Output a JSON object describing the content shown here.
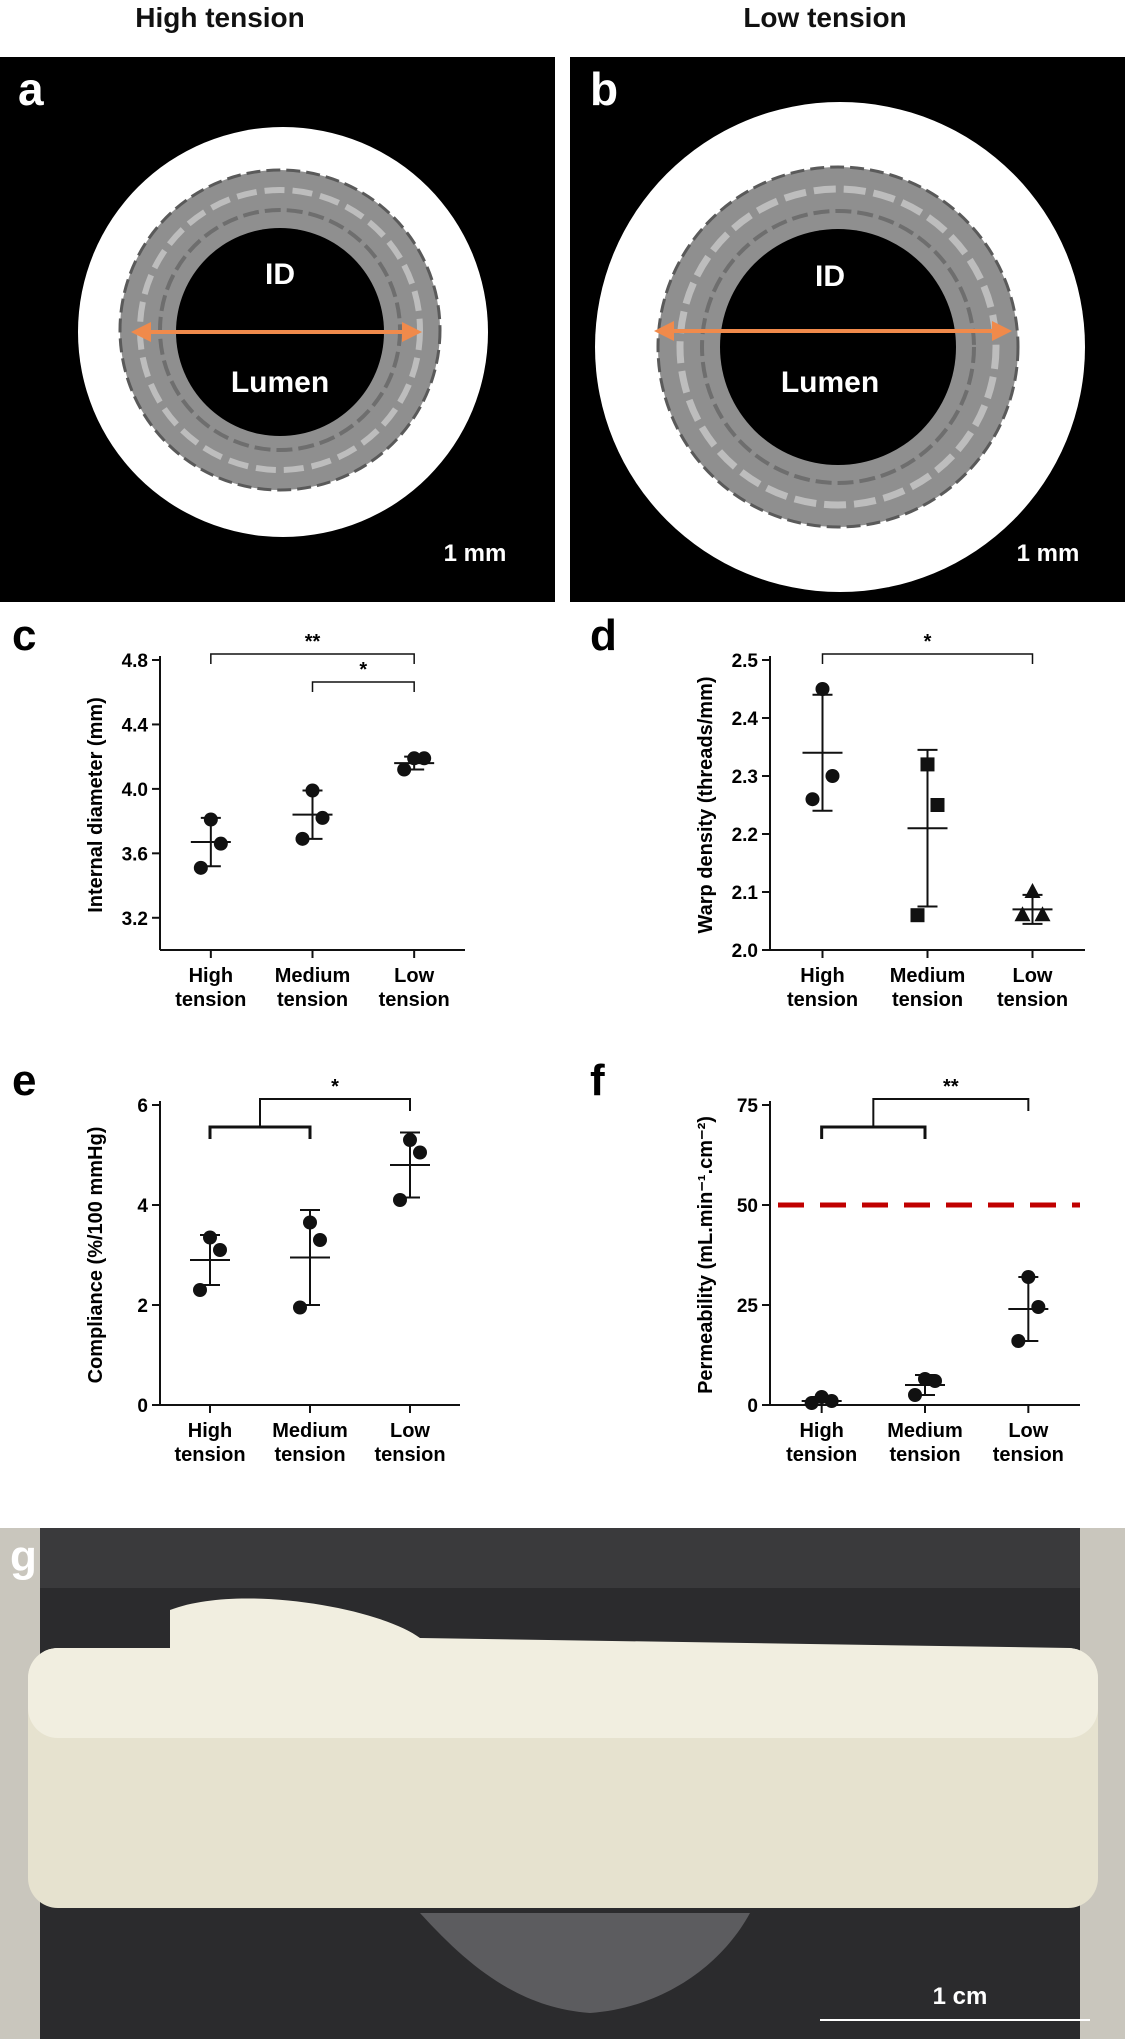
{
  "panel_a": {
    "letter": "a",
    "header": "High tension",
    "id_label": "ID",
    "lumen_label": "Lumen",
    "scalebar": "1 mm"
  },
  "panel_b": {
    "letter": "b",
    "header": "Low tension",
    "id_label": "ID",
    "lumen_label": "Lumen",
    "scalebar": "1 mm"
  },
  "panel_g": {
    "letter": "g",
    "scalebar": "1 cm"
  },
  "colors": {
    "arrow": "#f08a4b",
    "photo_bg": "#000000",
    "dashed_line": "#c00000"
  },
  "chart_data": [
    {
      "letter": "c",
      "type": "scatter",
      "ylabel": "Internal diameter (mm)",
      "ylim": [
        3.0,
        4.8
      ],
      "yticks": [
        "3.2",
        "3.6",
        "4.0",
        "4.4",
        "4.8"
      ],
      "categories": [
        "High\ntension",
        "Medium\ntension",
        "Low\ntension"
      ],
      "marker": [
        "circle",
        "circle",
        "circle"
      ],
      "points": [
        [
          3.51,
          3.66,
          3.81
        ],
        [
          3.69,
          3.82,
          3.99
        ],
        [
          4.12,
          4.19,
          4.19
        ]
      ],
      "mean": [
        3.67,
        3.84,
        4.16
      ],
      "sd": [
        0.15,
        0.15,
        0.04
      ],
      "significance": [
        {
          "from": 0,
          "to": 2,
          "label": "**"
        },
        {
          "from": 1,
          "to": 2,
          "label": "*"
        }
      ]
    },
    {
      "letter": "d",
      "type": "scatter",
      "ylabel": "Warp density (threads/mm)",
      "ylim": [
        2.0,
        2.5
      ],
      "yticks": [
        "2.0",
        "2.1",
        "2.2",
        "2.3",
        "2.4",
        "2.5"
      ],
      "categories": [
        "High\ntension",
        "Medium\ntension",
        "Low\ntension"
      ],
      "marker": [
        "circle",
        "square",
        "triangle"
      ],
      "points": [
        [
          2.26,
          2.3,
          2.45
        ],
        [
          2.06,
          2.25,
          2.32
        ],
        [
          2.06,
          2.06,
          2.1
        ]
      ],
      "mean": [
        2.34,
        2.21,
        2.07
      ],
      "sd": [
        0.1,
        0.135,
        0.025
      ],
      "significance": [
        {
          "from": 0,
          "to": 2,
          "label": "*"
        }
      ]
    },
    {
      "letter": "e",
      "type": "scatter",
      "ylabel": "Compliance (%/100 mmHg)",
      "ylim": [
        0,
        6
      ],
      "yticks": [
        "0",
        "2",
        "4",
        "6"
      ],
      "categories": [
        "High\ntension",
        "Medium\ntension",
        "Low\ntension"
      ],
      "marker": [
        "circle",
        "circle",
        "circle"
      ],
      "points": [
        [
          2.3,
          3.1,
          3.35
        ],
        [
          1.95,
          3.3,
          3.65
        ],
        [
          4.1,
          5.05,
          5.3
        ]
      ],
      "mean": [
        2.9,
        2.95,
        4.8
      ],
      "sd": [
        0.5,
        0.95,
        0.65
      ],
      "significance": [
        {
          "group": [
            0,
            1
          ],
          "to": 2,
          "label": "*"
        }
      ]
    },
    {
      "letter": "f",
      "type": "scatter",
      "ylabel": "Permeability (mL.min⁻¹.cm⁻²)",
      "ylim": [
        0,
        75
      ],
      "yticks": [
        "0",
        "25",
        "50",
        "75"
      ],
      "categories": [
        "High\ntension",
        "Medium\ntension",
        "Low\ntension"
      ],
      "marker": [
        "circle",
        "circle",
        "circle"
      ],
      "points": [
        [
          0.5,
          1.0,
          2.0
        ],
        [
          2.5,
          6.0,
          6.5
        ],
        [
          16.0,
          24.5,
          32.0
        ]
      ],
      "mean": [
        1.0,
        5.0,
        24.0
      ],
      "sd": [
        1.0,
        2.5,
        8.0
      ],
      "reference_line": 50,
      "significance": [
        {
          "group": [
            0,
            1
          ],
          "to": 2,
          "label": "**"
        }
      ]
    }
  ]
}
